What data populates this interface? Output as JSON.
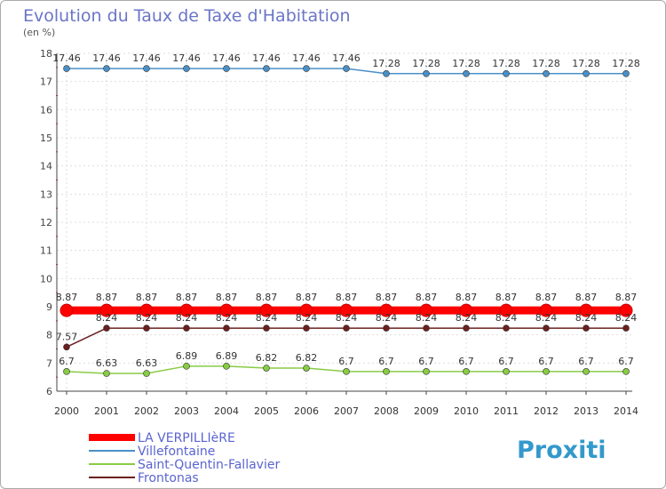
{
  "chart_data": {
    "type": "line",
    "title": "Evolution du Taux de Taxe d'Habitation",
    "subtitle": "(en %)",
    "x": [
      "2000",
      "2001",
      "2002",
      "2003",
      "2004",
      "2005",
      "2006",
      "2007",
      "2008",
      "2009",
      "2010",
      "2011",
      "2012",
      "2013",
      "2014"
    ],
    "yticks": [
      6,
      7,
      8,
      9,
      10,
      11,
      12,
      13,
      14,
      15,
      16,
      17,
      18
    ],
    "ylim": [
      6,
      18
    ],
    "legend_position": "bottom-left",
    "series": [
      {
        "name": "LA VERPILLIèRE",
        "color": "#ff0000",
        "values": [
          8.87,
          8.87,
          8.87,
          8.87,
          8.87,
          8.87,
          8.87,
          8.87,
          8.87,
          8.87,
          8.87,
          8.87,
          8.87,
          8.87,
          8.87
        ],
        "labels": [
          "8.87",
          "8.87",
          "8.87",
          "8.87",
          "8.87",
          "8.87",
          "8.87",
          "8.87",
          "8.87",
          "8.87",
          "8.87",
          "8.87",
          "8.87",
          "8.87",
          "8.87"
        ]
      },
      {
        "name": "Villefontaine",
        "color": "#4a90c8",
        "values": [
          17.46,
          17.46,
          17.46,
          17.46,
          17.46,
          17.46,
          17.46,
          17.46,
          17.28,
          17.28,
          17.28,
          17.28,
          17.28,
          17.28,
          17.28
        ],
        "labels": [
          "17.46",
          "17.46",
          "17.46",
          "17.46",
          "17.46",
          "17.46",
          "17.46",
          "17.46",
          "17.28",
          "17.28",
          "17.28",
          "17.28",
          "17.28",
          "17.28",
          "17.28"
        ]
      },
      {
        "name": "Saint-Quentin-Fallavier",
        "color": "#88cc44",
        "values": [
          6.7,
          6.63,
          6.63,
          6.89,
          6.89,
          6.82,
          6.82,
          6.7,
          6.7,
          6.7,
          6.7,
          6.7,
          6.7,
          6.7,
          6.7
        ],
        "labels": [
          "6.7",
          "6.63",
          "6.63",
          "6.89",
          "6.89",
          "6.82",
          "6.82",
          "6.7",
          "6.7",
          "6.7",
          "6.7",
          "6.7",
          "6.7",
          "6.7",
          "6.7"
        ]
      },
      {
        "name": "Frontonas",
        "color": "#6b1f1f",
        "values": [
          7.57,
          8.24,
          8.24,
          8.24,
          8.24,
          8.24,
          8.24,
          8.24,
          8.24,
          8.24,
          8.24,
          8.24,
          8.24,
          8.24,
          8.24
        ],
        "labels": [
          "7.57",
          "8.24",
          "8.24",
          "8.24",
          "8.24",
          "8.24",
          "8.24",
          "8.24",
          "8.24",
          "8.24",
          "8.24",
          "8.24",
          "8.24",
          "8.24",
          "8.24"
        ]
      }
    ]
  },
  "logo": {
    "text": "Proxiti"
  }
}
